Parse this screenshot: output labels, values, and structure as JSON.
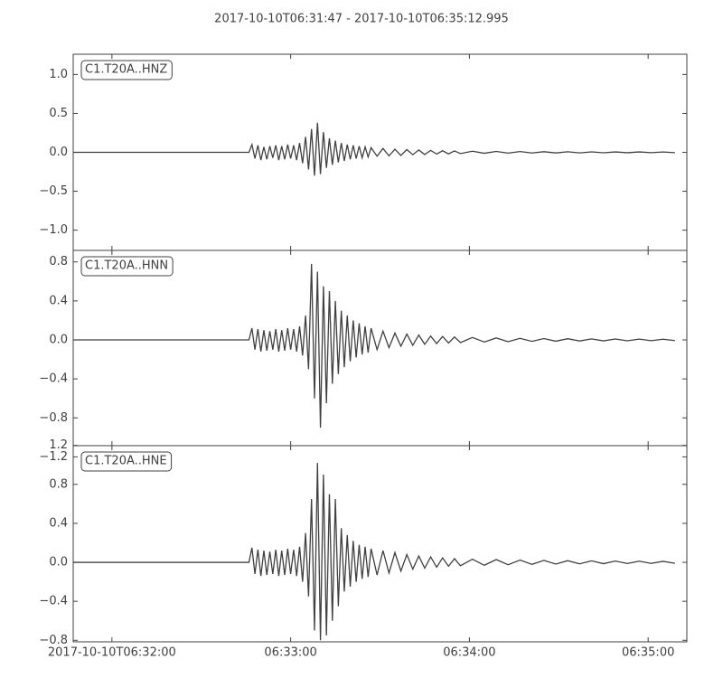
{
  "chart_data": [
    {
      "type": "line",
      "title": "2017-10-10T06:31:47  -  2017-10-10T06:35:12.995",
      "legend": "upper left",
      "grid": false,
      "xlim": [
        0,
        205.995
      ],
      "ylim": [
        -1.26,
        1.26
      ],
      "yticks": [
        {
          "value": -1,
          "label": "−1.0"
        },
        {
          "value": -0.5,
          "label": "−0.5"
        },
        {
          "value": 0,
          "label": "0.0"
        },
        0.5,
        {
          "value": 1,
          "label": "1.0"
        }
      ],
      "x": [
        0,
        59,
        60,
        61,
        62,
        63,
        64,
        65,
        66,
        67,
        68,
        69,
        70,
        71,
        72,
        73,
        74,
        75,
        76,
        77,
        78,
        79,
        80,
        81,
        82,
        83,
        84,
        85,
        86,
        87,
        88,
        89,
        90,
        91,
        92,
        93,
        94,
        95,
        96,
        97,
        98,
        99,
        100,
        102,
        104,
        106,
        108,
        110,
        112,
        114,
        116,
        118,
        120,
        122,
        124,
        126,
        128,
        130,
        134,
        138,
        142,
        146,
        150,
        154,
        158,
        162,
        166,
        170,
        174,
        178,
        182,
        186,
        190,
        194,
        198,
        202
      ],
      "series": [
        {
          "name": "C1.T20A..HNZ",
          "color": "#404040",
          "values": [
            0,
            0,
            0.1,
            -0.08,
            0.09,
            -0.1,
            0.07,
            -0.09,
            0.08,
            -0.07,
            0.09,
            -0.1,
            0.08,
            -0.09,
            0.1,
            -0.08,
            0.09,
            -0.1,
            0.12,
            -0.14,
            0.2,
            -0.22,
            0.3,
            -0.3,
            0.38,
            -0.28,
            0.26,
            -0.2,
            0.18,
            -0.16,
            0.15,
            -0.13,
            0.12,
            -0.11,
            0.1,
            -0.09,
            0.09,
            -0.08,
            0.08,
            -0.07,
            0.07,
            -0.06,
            0.06,
            -0.05,
            0.05,
            -0.045,
            0.04,
            -0.04,
            0.035,
            -0.03,
            0.03,
            -0.028,
            0.025,
            -0.022,
            0.02,
            -0.02,
            0.018,
            -0.016,
            0.014,
            -0.012,
            0.012,
            -0.01,
            0.01,
            -0.009,
            0.008,
            -0.008,
            0.007,
            -0.007,
            0.006,
            -0.006,
            0.005,
            -0.005,
            0.005,
            -0.004,
            0.004,
            -0.004
          ]
        }
      ]
    },
    {
      "type": "line",
      "legend": "upper left",
      "grid": false,
      "xlim": [
        0,
        205.995
      ],
      "ylim": [
        -1.085,
        0.918
      ],
      "yticks": [
        {
          "value": -1.2,
          "label": "−1.2"
        },
        {
          "value": -0.8,
          "label": "−0.8"
        },
        {
          "value": -0.4,
          "label": "−0.4"
        },
        {
          "value": 0,
          "label": "0.0"
        },
        0.4,
        0.8
      ],
      "x": [
        0,
        59,
        60,
        61,
        62,
        63,
        64,
        65,
        66,
        67,
        68,
        69,
        70,
        71,
        72,
        73,
        74,
        75,
        76,
        77,
        78,
        79,
        80,
        81,
        82,
        83,
        84,
        85,
        86,
        87,
        88,
        89,
        90,
        91,
        92,
        93,
        94,
        95,
        96,
        97,
        98,
        99,
        100,
        102,
        104,
        106,
        108,
        110,
        112,
        114,
        116,
        118,
        120,
        122,
        124,
        126,
        128,
        130,
        134,
        138,
        142,
        146,
        150,
        154,
        158,
        162,
        166,
        170,
        174,
        178,
        182,
        186,
        190,
        194,
        198,
        202
      ],
      "series": [
        {
          "name": "C1.T20A..HNN",
          "color": "#404040",
          "values": [
            0,
            0,
            0.12,
            -0.1,
            0.11,
            -0.12,
            0.1,
            -0.11,
            0.09,
            -0.1,
            0.11,
            -0.12,
            0.1,
            -0.11,
            0.12,
            -0.1,
            0.11,
            -0.12,
            0.14,
            -0.16,
            0.25,
            -0.3,
            0.78,
            -0.6,
            0.7,
            -0.9,
            0.55,
            -0.65,
            0.5,
            -0.45,
            0.4,
            -0.35,
            0.3,
            -0.28,
            0.25,
            -0.22,
            0.2,
            -0.18,
            0.17,
            -0.15,
            0.14,
            -0.13,
            0.12,
            -0.1,
            0.09,
            -0.08,
            0.07,
            -0.065,
            0.06,
            -0.055,
            0.05,
            -0.045,
            0.04,
            -0.038,
            0.035,
            -0.032,
            0.03,
            -0.028,
            0.025,
            -0.022,
            0.02,
            -0.018,
            0.016,
            -0.015,
            0.014,
            -0.013,
            0.012,
            -0.011,
            0.01,
            -0.01,
            0.009,
            -0.009,
            0.008,
            -0.008,
            0.007,
            -0.007
          ]
        }
      ]
    },
    {
      "type": "line",
      "legend": "upper left",
      "grid": false,
      "xlim": [
        0,
        205.995
      ],
      "ylim": [
        -0.816,
        1.197
      ],
      "xticks": [
        {
          "value": 13,
          "label": "2017-10-10T06:32:00"
        },
        {
          "value": 73,
          "label": "06:33:00"
        },
        {
          "value": 133,
          "label": "06:34:00"
        },
        {
          "value": 193,
          "label": "06:35:00"
        }
      ],
      "yticks": [
        {
          "value": -0.8,
          "label": "−0.8"
        },
        {
          "value": -0.4,
          "label": "−0.4"
        },
        {
          "value": 0,
          "label": "0.0"
        },
        0.4,
        0.8,
        1.2
      ],
      "x": [
        0,
        59,
        60,
        61,
        62,
        63,
        64,
        65,
        66,
        67,
        68,
        69,
        70,
        71,
        72,
        73,
        74,
        75,
        76,
        77,
        78,
        79,
        80,
        81,
        82,
        83,
        84,
        85,
        86,
        87,
        88,
        89,
        90,
        91,
        92,
        93,
        94,
        95,
        96,
        97,
        98,
        99,
        100,
        102,
        104,
        106,
        108,
        110,
        112,
        114,
        116,
        118,
        120,
        122,
        124,
        126,
        128,
        130,
        134,
        138,
        142,
        146,
        150,
        154,
        158,
        162,
        166,
        170,
        174,
        178,
        182,
        186,
        190,
        194,
        198,
        202
      ],
      "series": [
        {
          "name": "C1.T20A..HNE",
          "color": "#404040",
          "values": [
            0,
            0,
            0.15,
            -0.12,
            0.13,
            -0.14,
            0.12,
            -0.13,
            0.11,
            -0.12,
            0.13,
            -0.14,
            0.12,
            -0.13,
            0.14,
            -0.12,
            0.13,
            -0.14,
            0.16,
            -0.2,
            0.3,
            -0.35,
            0.65,
            -0.7,
            1.02,
            -0.8,
            0.9,
            -0.75,
            0.7,
            -0.6,
            0.65,
            -0.45,
            0.35,
            -0.3,
            0.28,
            -0.25,
            0.22,
            -0.2,
            0.18,
            -0.17,
            0.16,
            -0.15,
            0.14,
            -0.13,
            0.12,
            -0.11,
            0.1,
            -0.09,
            0.08,
            -0.07,
            0.065,
            -0.06,
            0.055,
            -0.05,
            0.045,
            -0.04,
            0.038,
            -0.035,
            0.032,
            -0.03,
            0.028,
            -0.025,
            0.023,
            -0.021,
            0.02,
            -0.018,
            0.017,
            -0.016,
            0.015,
            -0.014,
            0.013,
            -0.012,
            0.012,
            -0.011,
            0.01,
            -0.01
          ]
        }
      ]
    }
  ]
}
